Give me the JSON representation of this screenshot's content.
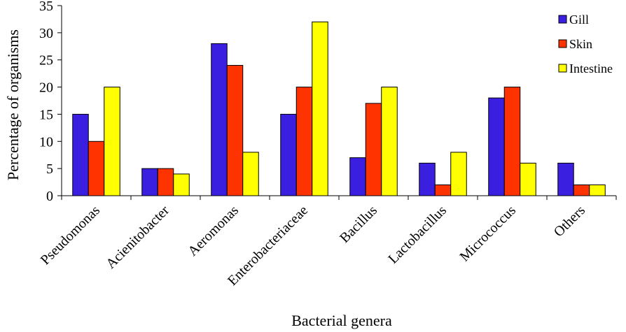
{
  "chart_data": {
    "type": "bar",
    "title": "",
    "xlabel": "Bacterial genera",
    "ylabel": "Percentage of organisms",
    "ylim": [
      0,
      35
    ],
    "yticks": [
      0,
      5,
      10,
      15,
      20,
      25,
      30,
      35
    ],
    "grid": false,
    "legend_position": "top-right",
    "categories": [
      "Pseudomonas",
      "Acienitobacter",
      "Aeromonas",
      "Enterobacteriaceae",
      "Bacillus",
      "Lactobacillus",
      "Micrococcus",
      "Others"
    ],
    "series": [
      {
        "name": "Gill",
        "color": "#3b1fe0",
        "values": [
          15,
          5,
          28,
          15,
          7,
          6,
          18,
          6
        ]
      },
      {
        "name": "Skin",
        "color": "#ff3300",
        "values": [
          10,
          5,
          24,
          20,
          17,
          2,
          20,
          2
        ]
      },
      {
        "name": "Intestine",
        "color": "#ffff00",
        "values": [
          20,
          4,
          8,
          32,
          20,
          8,
          6,
          2
        ]
      }
    ]
  }
}
